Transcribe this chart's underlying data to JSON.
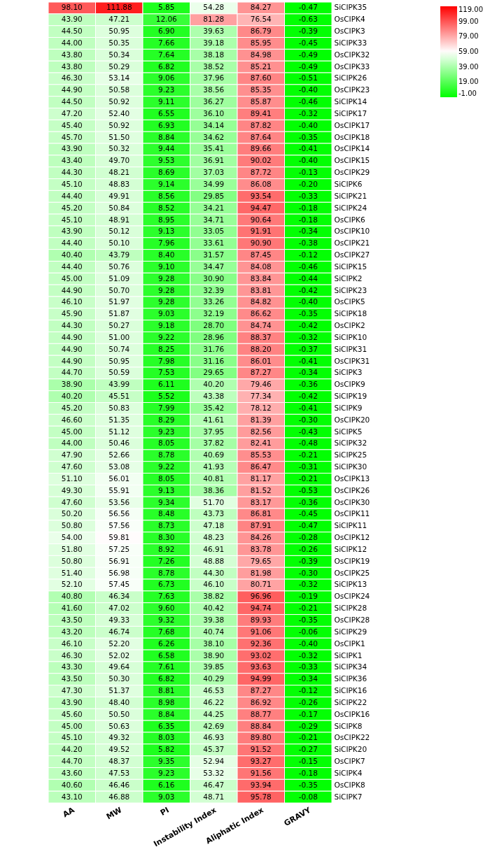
{
  "chart_data": {
    "type": "heatmap",
    "categories": [
      "AA",
      "MW",
      "PI",
      "Instability Index",
      "Aliphatic Index",
      "GRAVY"
    ],
    "y_categories": [
      "SiCIPK35",
      "OsCIPK4",
      "OsCIPK3",
      "SiCIPK33",
      "OsCIPK32",
      "OsCIPK33",
      "SiCIPK26",
      "OsCIPK23",
      "SiCIPK14",
      "SiCIPK17",
      "OsCIPK17",
      "OsCIPK18",
      "OsCIPK14",
      "OsCIPK15",
      "OsCIPK29",
      "SiCIPK6",
      "SiCIPK21",
      "SiCIPK24",
      "OsCIPK6",
      "OsCIPK10",
      "OsCIPK21",
      "OsCIPK27",
      "SiCIPK15",
      "SiCIPK2",
      "SiCIPK23",
      "OsCIPK5",
      "SiCIPK18",
      "OsCIPK2",
      "SiCIPK10",
      "SiCIPK31",
      "OsCIPK31",
      "SiCIPK3",
      "OsCIPK9",
      "SiCIPK19",
      "SiCIPK9",
      "OsCIPK20",
      "SiCIPK5",
      "SiCIPK32",
      "SiCIPK25",
      "SiCIPK30",
      "OsCIPK13",
      "OsCIPK26",
      "OsCIPK30",
      "OsCIPK11",
      "SiCIPK11",
      "OsCIPK12",
      "SiCIPK12",
      "OsCIPK19",
      "OsCIPK25",
      "SiCIPK13",
      "OsCIPK24",
      "SiCIPK28",
      "OsCIPK28",
      "SiCIPK29",
      "OsCIPK1",
      "SiCIPK1",
      "SiCIPK34",
      "SiCIPK36",
      "SiCIPK16",
      "SiCIPK22",
      "OsCIPK16",
      "SiCIPK8",
      "OsCIPK22",
      "SiCIPK20",
      "OsCIPK7",
      "SiCIPK4",
      "OsCIPK8",
      "SiCIPK7"
    ],
    "cells": [
      [
        98.1,
        111.88,
        5.85,
        54.28,
        84.27,
        -0.47
      ],
      [
        43.9,
        47.21,
        12.06,
        81.28,
        76.54,
        -0.63
      ],
      [
        44.5,
        50.95,
        6.9,
        39.63,
        86.79,
        -0.39
      ],
      [
        44.0,
        50.35,
        7.66,
        39.18,
        85.95,
        -0.45
      ],
      [
        43.8,
        50.34,
        7.64,
        38.18,
        84.98,
        -0.49
      ],
      [
        43.8,
        50.29,
        6.82,
        38.52,
        85.21,
        -0.49
      ],
      [
        46.3,
        53.14,
        9.06,
        37.96,
        87.6,
        -0.51
      ],
      [
        44.9,
        50.58,
        9.23,
        38.56,
        85.35,
        -0.4
      ],
      [
        44.5,
        50.92,
        9.11,
        36.27,
        85.87,
        -0.46
      ],
      [
        47.2,
        52.4,
        6.55,
        36.1,
        89.41,
        -0.32
      ],
      [
        45.4,
        50.92,
        6.93,
        34.14,
        87.82,
        -0.4
      ],
      [
        45.7,
        51.5,
        8.84,
        34.62,
        87.64,
        -0.35
      ],
      [
        43.9,
        50.32,
        9.44,
        35.41,
        89.66,
        -0.41
      ],
      [
        43.4,
        49.7,
        9.53,
        36.91,
        90.02,
        -0.4
      ],
      [
        44.3,
        48.21,
        8.69,
        37.03,
        87.72,
        -0.13
      ],
      [
        45.1,
        48.83,
        9.14,
        34.99,
        86.08,
        -0.2
      ],
      [
        44.4,
        49.91,
        8.56,
        29.85,
        93.54,
        -0.33
      ],
      [
        45.2,
        50.84,
        8.52,
        34.21,
        94.47,
        -0.18
      ],
      [
        45.1,
        48.91,
        8.95,
        34.71,
        90.64,
        -0.18
      ],
      [
        43.9,
        50.12,
        9.13,
        33.05,
        91.91,
        -0.34
      ],
      [
        44.4,
        50.1,
        7.96,
        33.61,
        90.9,
        -0.38
      ],
      [
        40.4,
        43.79,
        8.4,
        31.57,
        87.45,
        -0.12
      ],
      [
        44.4,
        50.76,
        9.1,
        34.47,
        84.08,
        -0.46
      ],
      [
        45.0,
        51.09,
        9.28,
        30.9,
        83.84,
        -0.44
      ],
      [
        44.9,
        50.7,
        9.28,
        32.39,
        83.81,
        -0.42
      ],
      [
        46.1,
        51.97,
        9.28,
        33.26,
        84.82,
        -0.4
      ],
      [
        45.9,
        51.87,
        9.03,
        32.19,
        86.62,
        -0.35
      ],
      [
        44.3,
        50.27,
        9.18,
        28.7,
        84.74,
        -0.42
      ],
      [
        44.9,
        51.0,
        9.22,
        28.96,
        88.37,
        -0.32
      ],
      [
        44.9,
        50.74,
        8.25,
        31.76,
        88.2,
        -0.37
      ],
      [
        44.9,
        50.95,
        7.98,
        31.16,
        86.01,
        -0.41
      ],
      [
        44.7,
        50.59,
        7.53,
        29.65,
        87.27,
        -0.34
      ],
      [
        38.9,
        43.99,
        6.11,
        40.2,
        79.46,
        -0.36
      ],
      [
        40.2,
        45.51,
        5.52,
        43.38,
        77.34,
        -0.42
      ],
      [
        45.2,
        50.83,
        7.99,
        35.42,
        78.12,
        -0.41
      ],
      [
        46.6,
        51.35,
        8.29,
        41.61,
        81.39,
        -0.3
      ],
      [
        45.0,
        51.12,
        9.23,
        37.95,
        82.56,
        -0.43
      ],
      [
        44.0,
        50.46,
        8.05,
        37.82,
        82.41,
        -0.48
      ],
      [
        47.9,
        52.66,
        8.78,
        40.69,
        85.53,
        -0.21
      ],
      [
        47.6,
        53.08,
        9.22,
        41.93,
        86.47,
        -0.31
      ],
      [
        51.1,
        56.01,
        8.05,
        40.81,
        81.17,
        -0.21
      ],
      [
        49.3,
        55.91,
        9.13,
        38.36,
        81.52,
        -0.53
      ],
      [
        47.6,
        53.56,
        9.34,
        51.7,
        83.17,
        -0.36
      ],
      [
        50.2,
        56.56,
        8.48,
        43.73,
        86.81,
        -0.45
      ],
      [
        50.8,
        57.56,
        8.73,
        47.18,
        87.91,
        -0.47
      ],
      [
        54.0,
        59.81,
        8.3,
        48.23,
        84.26,
        -0.28
      ],
      [
        51.8,
        57.25,
        8.92,
        46.91,
        83.78,
        -0.26
      ],
      [
        50.8,
        56.91,
        7.26,
        48.88,
        79.65,
        -0.39
      ],
      [
        51.4,
        56.98,
        8.78,
        44.3,
        81.98,
        -0.3
      ],
      [
        52.1,
        57.45,
        6.73,
        46.1,
        80.71,
        -0.32
      ],
      [
        40.8,
        46.34,
        7.63,
        38.82,
        96.96,
        -0.19
      ],
      [
        41.6,
        47.02,
        9.6,
        40.42,
        94.74,
        -0.21
      ],
      [
        43.5,
        49.33,
        9.32,
        39.38,
        89.93,
        -0.35
      ],
      [
        43.2,
        46.74,
        7.68,
        40.74,
        91.06,
        -0.06
      ],
      [
        46.1,
        52.2,
        6.26,
        38.1,
        92.36,
        -0.4
      ],
      [
        46.3,
        52.02,
        6.58,
        38.9,
        93.02,
        -0.32
      ],
      [
        43.3,
        49.64,
        7.61,
        39.85,
        93.63,
        -0.33
      ],
      [
        43.5,
        50.3,
        6.82,
        40.29,
        94.99,
        -0.34
      ],
      [
        47.3,
        51.37,
        8.81,
        46.53,
        87.27,
        -0.12
      ],
      [
        43.9,
        48.4,
        8.98,
        46.22,
        86.92,
        -0.26
      ],
      [
        45.6,
        50.5,
        8.84,
        44.25,
        88.77,
        -0.17
      ],
      [
        45.0,
        50.63,
        6.35,
        42.69,
        88.84,
        -0.29
      ],
      [
        45.1,
        49.32,
        8.03,
        46.93,
        89.8,
        -0.21
      ],
      [
        44.2,
        49.52,
        5.82,
        45.37,
        91.52,
        -0.27
      ],
      [
        44.7,
        48.37,
        9.35,
        52.94,
        93.27,
        -0.15
      ],
      [
        43.6,
        47.53,
        9.23,
        53.32,
        91.56,
        -0.18
      ],
      [
        40.6,
        46.46,
        6.16,
        46.47,
        93.94,
        -0.35
      ],
      [
        43.1,
        46.88,
        9.03,
        48.71,
        95.78,
        -0.08
      ]
    ],
    "clim": [
      -1,
      119
    ],
    "cticks": [
      {
        "value": -1,
        "label": "-1.00"
      },
      {
        "value": 19,
        "label": "19.00"
      },
      {
        "value": 39,
        "label": "39.00"
      },
      {
        "value": 59,
        "label": "59.00"
      },
      {
        "value": 79,
        "label": "79.00"
      },
      {
        "value": 99,
        "label": "99.00"
      },
      {
        "value": 119,
        "label": "119.00"
      }
    ],
    "cell_labels": [
      [
        "98.10",
        "111.88",
        "5.85",
        "54.28",
        "84.27",
        "-0.47"
      ],
      [
        "43.90",
        "47.21",
        "12.06",
        "81.28",
        "76.54",
        "-0.63"
      ],
      [
        "44.50",
        "50.95",
        "6.90",
        "39.63",
        "86.79",
        "-0.39"
      ],
      [
        "44.00",
        "50.35",
        "7.66",
        "39.18",
        "85.95",
        "-0.45"
      ],
      [
        "43.80",
        "50.34",
        "7.64",
        "38.18",
        "84.98",
        "-0.49"
      ],
      [
        "43.80",
        "50.29",
        "6.82",
        "38.52",
        "85.21",
        "-0.49"
      ],
      [
        "46.30",
        "53.14",
        "9.06",
        "37.96",
        "87.60",
        "-0.51"
      ],
      [
        "44.90",
        "50.58",
        "9.23",
        "38.56",
        "85.35",
        "-0.40"
      ],
      [
        "44.50",
        "50.92",
        "9.11",
        "36.27",
        "85.87",
        "-0.46"
      ],
      [
        "47.20",
        "52.40",
        "6.55",
        "36.10",
        "89.41",
        "-0.32"
      ],
      [
        "45.40",
        "50.92",
        "6.93",
        "34.14",
        "87.82",
        "-0.40"
      ],
      [
        "45.70",
        "51.50",
        "8.84",
        "34.62",
        "87.64",
        "-0.35"
      ],
      [
        "43.90",
        "50.32",
        "9.44",
        "35.41",
        "89.66",
        "-0.41"
      ],
      [
        "43.40",
        "49.70",
        "9.53",
        "36.91",
        "90.02",
        "-0.40"
      ],
      [
        "44.30",
        "48.21",
        "8.69",
        "37.03",
        "87.72",
        "-0.13"
      ],
      [
        "45.10",
        "48.83",
        "9.14",
        "34.99",
        "86.08",
        "-0.20"
      ],
      [
        "44.40",
        "49.91",
        "8.56",
        "29.85",
        "93.54",
        "-0.33"
      ],
      [
        "45.20",
        "50.84",
        "8.52",
        "34.21",
        "94.47",
        "-0.18"
      ],
      [
        "45.10",
        "48.91",
        "8.95",
        "34.71",
        "90.64",
        "-0.18"
      ],
      [
        "43.90",
        "50.12",
        "9.13",
        "33.05",
        "91.91",
        "-0.34"
      ],
      [
        "44.40",
        "50.10",
        "7.96",
        "33.61",
        "90.90",
        "-0.38"
      ],
      [
        "40.40",
        "43.79",
        "8.40",
        "31.57",
        "87.45",
        "-0.12"
      ],
      [
        "44.40",
        "50.76",
        "9.10",
        "34.47",
        "84.08",
        "-0.46"
      ],
      [
        "45.00",
        "51.09",
        "9.28",
        "30.90",
        "83.84",
        "-0.44"
      ],
      [
        "44.90",
        "50.70",
        "9.28",
        "32.39",
        "83.81",
        "-0.42"
      ],
      [
        "46.10",
        "51.97",
        "9.28",
        "33.26",
        "84.82",
        "-0.40"
      ],
      [
        "45.90",
        "51.87",
        "9.03",
        "32.19",
        "86.62",
        "-0.35"
      ],
      [
        "44.30",
        "50.27",
        "9.18",
        "28.70",
        "84.74",
        "-0.42"
      ],
      [
        "44.90",
        "51.00",
        "9.22",
        "28.96",
        "88.37",
        "-0.32"
      ],
      [
        "44.90",
        "50.74",
        "8.25",
        "31.76",
        "88.20",
        "-0.37"
      ],
      [
        "44.90",
        "50.95",
        "7.98",
        "31.16",
        "86.01",
        "-0.41"
      ],
      [
        "44.70",
        "50.59",
        "7.53",
        "29.65",
        "87.27",
        "-0.34"
      ],
      [
        "38.90",
        "43.99",
        "6.11",
        "40.20",
        "79.46",
        "-0.36"
      ],
      [
        "40.20",
        "45.51",
        "5.52",
        "43.38",
        "77.34",
        "-0.42"
      ],
      [
        "45.20",
        "50.83",
        "7.99",
        "35.42",
        "78.12",
        "-0.41"
      ],
      [
        "46.60",
        "51.35",
        "8.29",
        "41.61",
        "81.39",
        "-0.30"
      ],
      [
        "45.00",
        "51.12",
        "9.23",
        "37.95",
        "82.56",
        "-0.43"
      ],
      [
        "44.00",
        "50.46",
        "8.05",
        "37.82",
        "82.41",
        "-0.48"
      ],
      [
        "47.90",
        "52.66",
        "8.78",
        "40.69",
        "85.53",
        "-0.21"
      ],
      [
        "47.60",
        "53.08",
        "9.22",
        "41.93",
        "86.47",
        "-0.31"
      ],
      [
        "51.10",
        "56.01",
        "8.05",
        "40.81",
        "81.17",
        "-0.21"
      ],
      [
        "49.30",
        "55.91",
        "9.13",
        "38.36",
        "81.52",
        "-0.53"
      ],
      [
        "47.60",
        "53.56",
        "9.34",
        "51.70",
        "83.17",
        "-0.36"
      ],
      [
        "50.20",
        "56.56",
        "8.48",
        "43.73",
        "86.81",
        "-0.45"
      ],
      [
        "50.80",
        "57.56",
        "8.73",
        "47.18",
        "87.91",
        "-0.47"
      ],
      [
        "54.00",
        "59.81",
        "8.30",
        "48.23",
        "84.26",
        "-0.28"
      ],
      [
        "51.80",
        "57.25",
        "8.92",
        "46.91",
        "83.78",
        "-0.26"
      ],
      [
        "50.80",
        "56.91",
        "7.26",
        "48.88",
        "79.65",
        "-0.39"
      ],
      [
        "51.40",
        "56.98",
        "8.78",
        "44.30",
        "81.98",
        "-0.30"
      ],
      [
        "52.10",
        "57.45",
        "6.73",
        "46.10",
        "80.71",
        "-0.32"
      ],
      [
        "40.80",
        "46.34",
        "7.63",
        "38.82",
        "96.96",
        "-0.19"
      ],
      [
        "41.60",
        "47.02",
        "9.60",
        "40.42",
        "94.74",
        "-0.21"
      ],
      [
        "43.50",
        "49.33",
        "9.32",
        "39.38",
        "89.93",
        "-0.35"
      ],
      [
        "43.20",
        "46.74",
        "7.68",
        "40.74",
        "91.06",
        "-0.06"
      ],
      [
        "46.10",
        "52.20",
        "6.26",
        "38.10",
        "92.36",
        "-0.40"
      ],
      [
        "46.30",
        "52.02",
        "6.58",
        "38.90",
        "93.02",
        "-0.32"
      ],
      [
        "43.30",
        "49.64",
        "7.61",
        "39.85",
        "93.63",
        "-0.33"
      ],
      [
        "43.50",
        "50.30",
        "6.82",
        "40.29",
        "94.99",
        "-0.34"
      ],
      [
        "47.30",
        "51.37",
        "8.81",
        "46.53",
        "87.27",
        "-0.12"
      ],
      [
        "43.90",
        "48.40",
        "8.98",
        "46.22",
        "86.92",
        "-0.26"
      ],
      [
        "45.60",
        "50.50",
        "8.84",
        "44.25",
        "88.77",
        "-0.17"
      ],
      [
        "45.00",
        "50.63",
        "6.35",
        "42.69",
        "88.84",
        "-0.29"
      ],
      [
        "45.10",
        "49.32",
        "8.03",
        "46.93",
        "89.80",
        "-0.21"
      ],
      [
        "44.20",
        "49.52",
        "5.82",
        "45.37",
        "91.52",
        "-0.27"
      ],
      [
        "44.70",
        "48.37",
        "9.35",
        "52.94",
        "93.27",
        "-0.15"
      ],
      [
        "43.60",
        "47.53",
        "9.23",
        "53.32",
        "91.56",
        "-0.18"
      ],
      [
        "40.60",
        "46.46",
        "6.16",
        "46.47",
        "93.94",
        "-0.35"
      ],
      [
        "43.10",
        "46.88",
        "9.03",
        "48.71",
        "95.78",
        "-0.08"
      ]
    ]
  }
}
